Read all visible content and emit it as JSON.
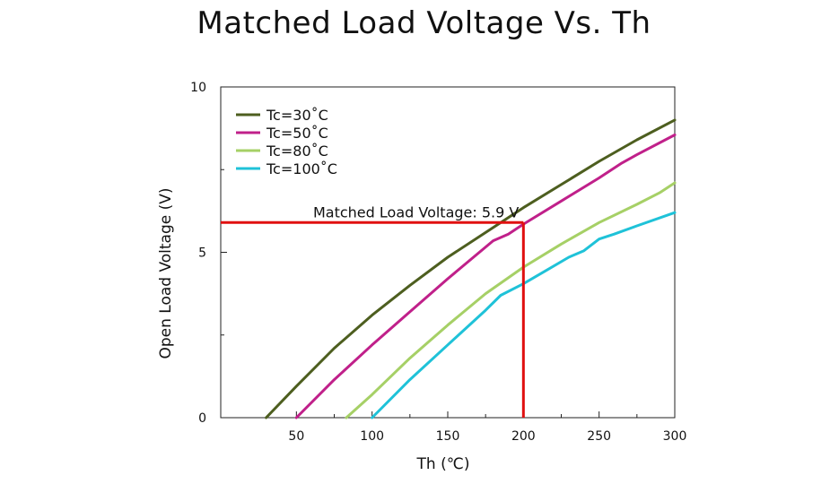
{
  "chart_data": {
    "type": "line",
    "title": "Matched Load Voltage Vs. Th",
    "xlabel": "Th (℃)",
    "ylabel": "Open Load Voltage (V)",
    "xlim": [
      0,
      300
    ],
    "ylim": [
      0,
      10
    ],
    "x_ticks": [
      50,
      100,
      150,
      200,
      250,
      300
    ],
    "x_minor_ticks": [
      75,
      125,
      175,
      225,
      275
    ],
    "y_ticks": [
      0,
      5,
      10
    ],
    "y_minor_ticks": [
      2.5,
      7.5
    ],
    "grid": false,
    "legend_position": "top-left",
    "series": [
      {
        "name": "Tc=30˚C",
        "color": "#4d5e1f",
        "x": [
          30,
          50,
          75,
          100,
          125,
          150,
          175,
          200,
          225,
          250,
          275,
          300
        ],
        "y": [
          0,
          0.95,
          2.1,
          3.1,
          4.0,
          4.85,
          5.6,
          6.35,
          7.05,
          7.75,
          8.4,
          9.0
        ]
      },
      {
        "name": "Tc=50˚C",
        "color": "#c0208a",
        "x": [
          50,
          75,
          100,
          125,
          150,
          180,
          190,
          200,
          225,
          250,
          265,
          275,
          300
        ],
        "y": [
          0,
          1.15,
          2.2,
          3.2,
          4.2,
          5.35,
          5.55,
          5.85,
          6.55,
          7.25,
          7.7,
          7.95,
          8.55
        ]
      },
      {
        "name": "Tc=80˚C",
        "color": "#a6d066",
        "x": [
          83,
          100,
          125,
          150,
          175,
          200,
          225,
          250,
          275,
          290,
          300
        ],
        "y": [
          0,
          0.7,
          1.8,
          2.8,
          3.75,
          4.55,
          5.25,
          5.9,
          6.45,
          6.8,
          7.1
        ]
      },
      {
        "name": "Tc=100˚C",
        "color": "#1fc2d8",
        "x": [
          100,
          125,
          150,
          175,
          185,
          200,
          215,
          230,
          240,
          250,
          260,
          275,
          300
        ],
        "y": [
          0,
          1.15,
          2.2,
          3.25,
          3.7,
          4.05,
          4.45,
          4.85,
          5.05,
          5.4,
          5.55,
          5.8,
          6.2
        ]
      }
    ],
    "annotation": {
      "text": "Matched Load Voltage: 5.9 V",
      "x": 200,
      "y": 5.9,
      "color": "#e01010"
    }
  }
}
